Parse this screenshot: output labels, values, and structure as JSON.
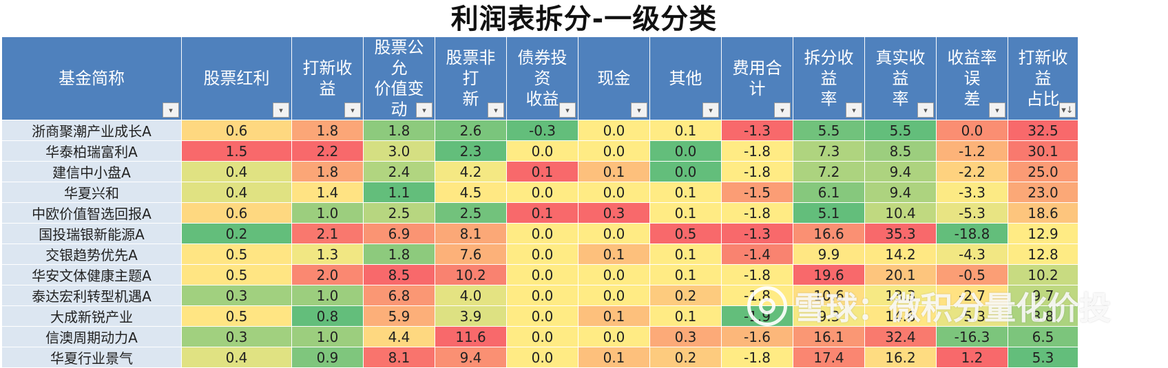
{
  "title": "利润表拆分-一级分类",
  "headers": [
    "基金简称",
    "股票红利",
    "打新收益",
    "股票公允价值变动",
    "股票非打新",
    "债券投资收益",
    "现金",
    "其他",
    "费用合计",
    "拆分收益率",
    "真实收益率",
    "收益率误差",
    "打新收益占比"
  ],
  "header_lines": [
    [
      "基金简称"
    ],
    [
      "股票红利"
    ],
    [
      "打新收益"
    ],
    [
      "股票公允",
      "价值变动"
    ],
    [
      "股票非打",
      "新"
    ],
    [
      "债券投资",
      "收益"
    ],
    [
      "现金"
    ],
    [
      "其他"
    ],
    [
      "费用合计"
    ],
    [
      "拆分收益",
      "率"
    ],
    [
      "真实收益",
      "率"
    ],
    [
      "收益率误",
      "差"
    ],
    [
      "打新收益",
      "占比"
    ]
  ],
  "rows": [
    [
      "浙商聚潮产业成长A",
      "0.6",
      "1.8",
      "1.8",
      "2.6",
      "-0.3",
      "0.0",
      "0.1",
      "-1.3",
      "5.5",
      "5.5",
      "0.0",
      "32.5"
    ],
    [
      "华泰柏瑞富利A",
      "1.5",
      "2.2",
      "3.0",
      "2.3",
      "0.0",
      "0.0",
      "0.0",
      "-1.8",
      "7.3",
      "8.5",
      "-1.2",
      "30.1"
    ],
    [
      "建信中小盘A",
      "0.4",
      "1.8",
      "2.4",
      "4.2",
      "0.1",
      "0.1",
      "0.0",
      "-1.8",
      "7.2",
      "9.4",
      "-2.2",
      "25.0"
    ],
    [
      "华夏兴和",
      "0.4",
      "1.4",
      "1.1",
      "4.5",
      "0.0",
      "0.0",
      "0.1",
      "-1.5",
      "6.1",
      "9.4",
      "-3.3",
      "23.0"
    ],
    [
      "中欧价值智选回报A",
      "0.6",
      "1.0",
      "2.5",
      "2.5",
      "0.1",
      "0.3",
      "0.1",
      "-1.8",
      "5.1",
      "10.4",
      "-5.3",
      "18.6"
    ],
    [
      "国投瑞银新能源A",
      "0.2",
      "2.1",
      "6.9",
      "8.1",
      "0.0",
      "0.0",
      "0.5",
      "-1.3",
      "16.6",
      "35.3",
      "-18.8",
      "12.9"
    ],
    [
      "交银趋势优先A",
      "0.5",
      "1.3",
      "1.8",
      "7.6",
      "0.0",
      "0.1",
      "0.1",
      "-1.4",
      "9.9",
      "14.2",
      "-4.3",
      "12.8"
    ],
    [
      "华安文体健康主题A",
      "0.5",
      "2.0",
      "8.5",
      "10.2",
      "0.0",
      "0.0",
      "0.1",
      "-1.8",
      "19.6",
      "20.1",
      "-0.5",
      "10.2"
    ],
    [
      "泰达宏利转型机遇A",
      "0.3",
      "1.0",
      "6.8",
      "4.0",
      "0.0",
      "0.0",
      "0.2",
      "-1.8",
      "10.6",
      "13.3",
      "-2.7",
      "9.7"
    ],
    [
      "大成新锐产业",
      "0.5",
      "0.8",
      "5.9",
      "3.9",
      "0.0",
      "0.1",
      "0.1",
      "-1.9",
      "9.3",
      "14.6",
      "-5.3",
      "8.8"
    ],
    [
      "信澳周期动力A",
      "0.3",
      "1.0",
      "4.4",
      "11.6",
      "0.0",
      "0.0",
      "0.3",
      "-1.6",
      "16.1",
      "32.4",
      "-16.3",
      "6.5"
    ],
    [
      "华夏行业景气",
      "0.4",
      "0.9",
      "8.1",
      "9.4",
      "0.0",
      "0.1",
      "0.2",
      "-1.8",
      "17.4",
      "16.2",
      "1.2",
      "5.3"
    ]
  ],
  "colors": {
    "header_bg": "#4f81bd",
    "name_bg": "#dce6f1",
    "scale_low": "#63be7b",
    "scale_mid": "#ffeb84",
    "scale_high": "#f8696b"
  },
  "filter_icons": {
    "default": "▾",
    "sorted": "▾↓"
  },
  "watermark": "雪球：微积分量化价投"
}
